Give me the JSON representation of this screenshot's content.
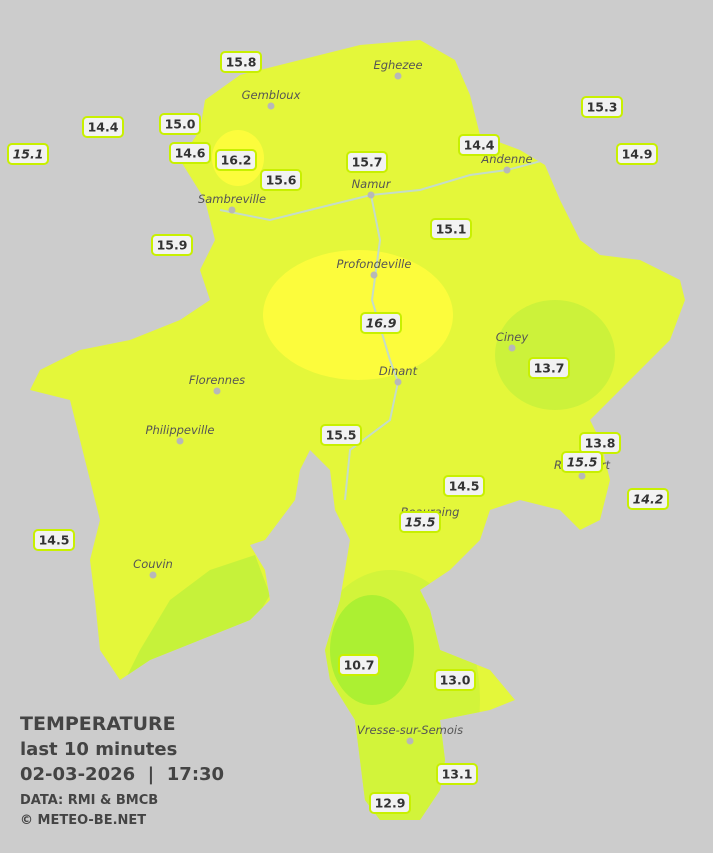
{
  "legend": {
    "title": "TEMPERATURE",
    "period": "last 10 minutes",
    "timestamp": "02-03-2026  |  17:30",
    "source": "DATA: RMI & BMCB",
    "copyright": "© METEO-BE.NET"
  },
  "cities": [
    "Eghezee",
    "Gembloux",
    "Andenne",
    "Namur",
    "Sambreville",
    "Profondeville",
    "Ciney",
    "Dinant",
    "Florennes",
    "Philippeville",
    "Couvin",
    "Vresse-sur-Semois",
    "Rochefort",
    "Beauraing"
  ],
  "stations": [
    "15.8",
    "14.4",
    "15.1",
    "15.0",
    "14.6",
    "16.2",
    "15.6",
    "15.7",
    "14.4",
    "15.3",
    "14.9",
    "15.9",
    "15.1",
    "16.9",
    "13.7",
    "15.5",
    "13.8",
    "15.5",
    "14.5",
    "15.5",
    "14.2",
    "14.5",
    "10.7",
    "13.0",
    "13.1",
    "12.9"
  ]
}
